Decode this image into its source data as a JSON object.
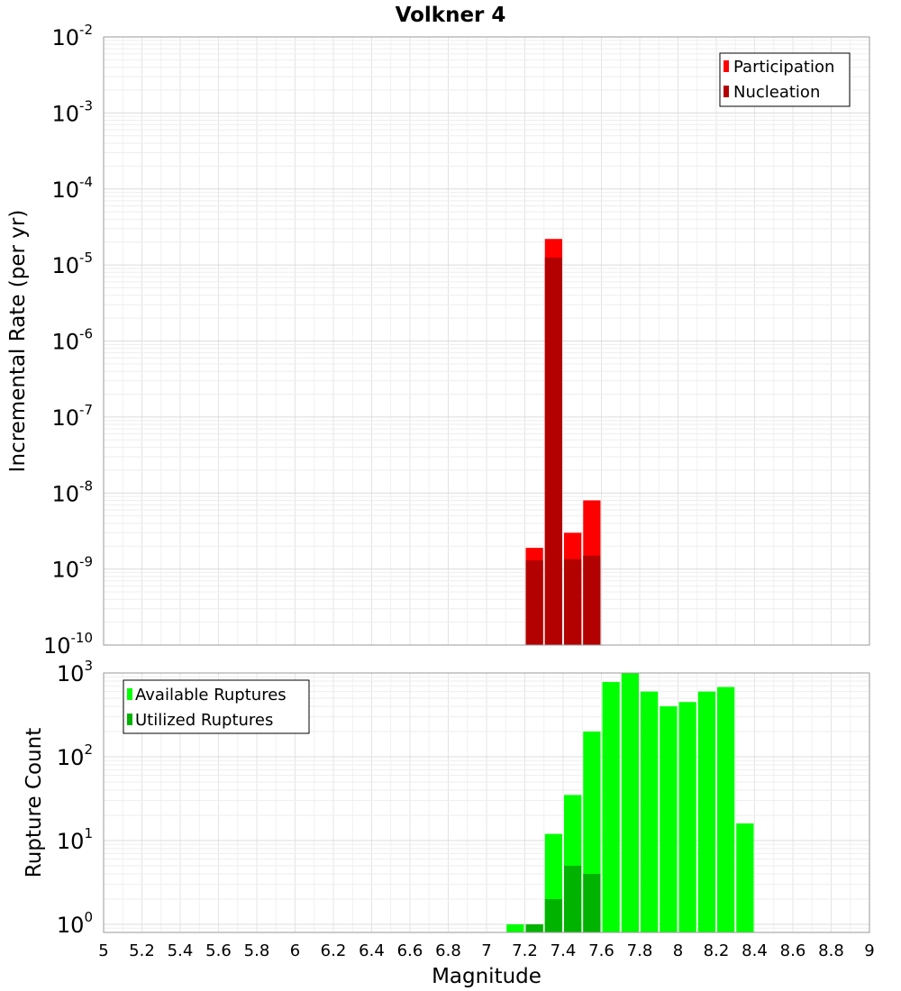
{
  "chart_data": [
    {
      "type": "bar",
      "title": "Volkner 4",
      "xlabel": "Magnitude",
      "ylabel": "Incremental Rate (per yr)",
      "y_scale": "log",
      "ylim": [
        1e-10,
        0.01
      ],
      "xlim": [
        5,
        9
      ],
      "bin_width": 0.1,
      "grid": true,
      "legend_position": "top-right",
      "y_ticks": [
        {
          "base": "10",
          "exp": "-10",
          "value": 1e-10
        },
        {
          "base": "10",
          "exp": "-9",
          "value": 1e-09
        },
        {
          "base": "10",
          "exp": "-8",
          "value": 1e-08
        },
        {
          "base": "10",
          "exp": "-7",
          "value": 1e-07
        },
        {
          "base": "10",
          "exp": "-6",
          "value": 1e-06
        },
        {
          "base": "10",
          "exp": "-5",
          "value": 1e-05
        },
        {
          "base": "10",
          "exp": "-4",
          "value": 0.0001
        },
        {
          "base": "10",
          "exp": "-3",
          "value": 0.001
        },
        {
          "base": "10",
          "exp": "-2",
          "value": 0.01
        }
      ],
      "series": [
        {
          "name": "Participation",
          "color": "#ff0000",
          "x": [
            7.25,
            7.35,
            7.45,
            7.55
          ],
          "values": [
            1.9e-09,
            2.2e-05,
            3e-09,
            8e-09
          ]
        },
        {
          "name": "Nucleation",
          "color": "#b30000",
          "x": [
            7.25,
            7.35,
            7.45,
            7.55
          ],
          "values": [
            1.3e-09,
            1.25e-05,
            1.35e-09,
            1.5e-09
          ]
        }
      ]
    },
    {
      "type": "bar",
      "xlabel": "Magnitude",
      "ylabel": "Rupture Count",
      "y_scale": "log",
      "ylim": [
        0.8,
        1000
      ],
      "xlim": [
        5,
        9
      ],
      "bin_width": 0.1,
      "grid": true,
      "legend_position": "top-left",
      "y_ticks": [
        {
          "base": "10",
          "exp": "0",
          "value": 1
        },
        {
          "base": "10",
          "exp": "1",
          "value": 10
        },
        {
          "base": "10",
          "exp": "2",
          "value": 100
        },
        {
          "base": "10",
          "exp": "3",
          "value": 1000
        }
      ],
      "x_ticks": [
        "5",
        "5.2",
        "5.4",
        "5.6",
        "5.8",
        "6",
        "6.2",
        "6.4",
        "6.6",
        "6.8",
        "7",
        "7.2",
        "7.4",
        "7.6",
        "7.8",
        "8",
        "8.2",
        "8.4",
        "8.6",
        "8.8",
        "9"
      ],
      "series": [
        {
          "name": "Available Ruptures",
          "color": "#00ff00",
          "x": [
            7.15,
            7.25,
            7.35,
            7.45,
            7.55,
            7.65,
            7.75,
            7.85,
            7.95,
            8.05,
            8.15,
            8.25,
            8.35
          ],
          "values": [
            1,
            1,
            12,
            35,
            200,
            780,
            1000,
            600,
            400,
            450,
            600,
            680,
            16
          ]
        },
        {
          "name": "Utilized Ruptures",
          "color": "#00b300",
          "x": [
            7.25,
            7.35,
            7.45,
            7.55
          ],
          "values": [
            1,
            2,
            5,
            4
          ]
        }
      ]
    }
  ]
}
